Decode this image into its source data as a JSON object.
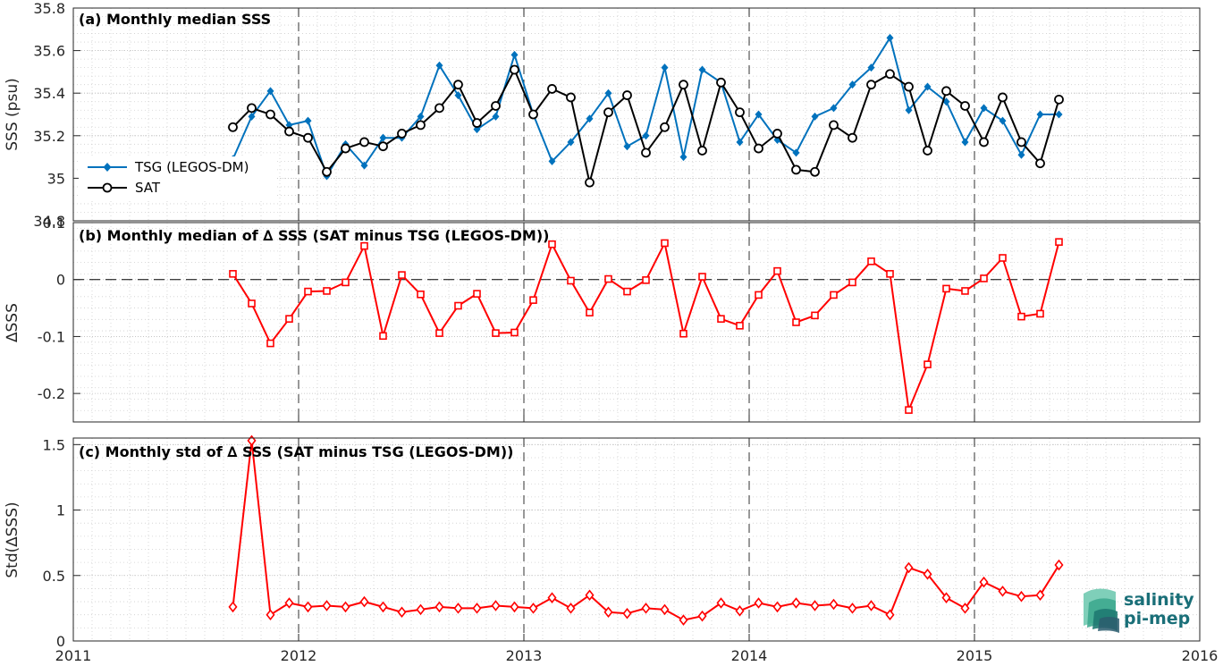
{
  "chart_data": [
    {
      "type": "line",
      "title": "(a) Monthly median SSS",
      "xlabel": "",
      "ylabel": "SSS (psu)",
      "xlim": [
        2011,
        2016
      ],
      "ylim": [
        34.8,
        35.8
      ],
      "yticks": [
        34.8,
        35,
        35.2,
        35.4,
        35.6,
        35.8
      ],
      "ytick_labels": [
        "34.8",
        "35",
        "35.2",
        "35.4",
        "35.6",
        "35.8"
      ],
      "grid": true,
      "legend_position": "lower-left",
      "x": [
        2011.7083,
        2011.7917,
        2011.875,
        2011.9583,
        2012.0417,
        2012.125,
        2012.2083,
        2012.2917,
        2012.375,
        2012.4583,
        2012.5417,
        2012.625,
        2012.7083,
        2012.7917,
        2012.875,
        2012.9583,
        2013.0417,
        2013.125,
        2013.2083,
        2013.2917,
        2013.375,
        2013.4583,
        2013.5417,
        2013.625,
        2013.7083,
        2013.7917,
        2013.875,
        2013.9583,
        2014.0417,
        2014.125,
        2014.2083,
        2014.2917,
        2014.375,
        2014.4583,
        2014.5417,
        2014.625,
        2014.7083,
        2014.7917,
        2014.875,
        2014.9583,
        2015.0417,
        2015.125,
        2015.2083,
        2015.2917,
        2015.375
      ],
      "series": [
        {
          "name": "TSG (LEGOS-DM)",
          "color": "#0072bd",
          "marker": "diamond-filled",
          "values": [
            35.09,
            35.29,
            35.41,
            35.25,
            35.27,
            35.01,
            35.16,
            35.06,
            35.19,
            35.19,
            35.29,
            35.53,
            35.39,
            35.23,
            35.29,
            35.58,
            35.3,
            35.08,
            35.17,
            35.28,
            35.4,
            35.15,
            35.2,
            35.52,
            35.1,
            35.51,
            35.45,
            35.17,
            35.3,
            35.18,
            35.12,
            35.29,
            35.33,
            35.44,
            35.52,
            35.66,
            35.32,
            35.43,
            35.36,
            35.17,
            35.33,
            35.27,
            35.11,
            35.3,
            35.3
          ]
        },
        {
          "name": "SAT",
          "color": "#000000",
          "marker": "circle-open",
          "values": [
            35.24,
            35.33,
            35.3,
            35.22,
            35.19,
            35.03,
            35.14,
            35.17,
            35.15,
            35.21,
            35.25,
            35.33,
            35.44,
            35.26,
            35.34,
            35.51,
            35.3,
            35.42,
            35.38,
            34.98,
            35.31,
            35.39,
            35.12,
            35.24,
            35.44,
            35.13,
            35.45,
            35.31,
            35.14,
            35.21,
            35.04,
            35.03,
            35.25,
            35.19,
            35.44,
            35.49,
            35.43,
            35.13,
            35.41,
            35.34,
            35.17,
            35.38,
            35.17,
            35.07,
            35.37
          ]
        }
      ]
    },
    {
      "type": "line",
      "title": "(b) Monthly median of ∆ SSS (SAT minus TSG (LEGOS-DM))",
      "xlabel": "",
      "ylabel": "∆SSS",
      "xlim": [
        2011,
        2016
      ],
      "ylim": [
        -0.25,
        0.1
      ],
      "yticks": [
        -0.2,
        -0.1,
        0,
        0.1
      ],
      "ytick_labels": [
        "-0.2",
        "-0.1",
        "0",
        "0.1"
      ],
      "grid": true,
      "zero_line": "dashed",
      "x": [
        2011.7083,
        2011.7917,
        2011.875,
        2011.9583,
        2012.0417,
        2012.125,
        2012.2083,
        2012.2917,
        2012.375,
        2012.4583,
        2012.5417,
        2012.625,
        2012.7083,
        2012.7917,
        2012.875,
        2012.9583,
        2013.0417,
        2013.125,
        2013.2083,
        2013.2917,
        2013.375,
        2013.4583,
        2013.5417,
        2013.625,
        2013.7083,
        2013.7917,
        2013.875,
        2013.9583,
        2014.0417,
        2014.125,
        2014.2083,
        2014.2917,
        2014.375,
        2014.4583,
        2014.5417,
        2014.625,
        2014.7083,
        2014.7917,
        2014.875,
        2014.9583,
        2015.0417,
        2015.125,
        2015.2083,
        2015.2917,
        2015.375
      ],
      "series": [
        {
          "color": "#ff0000",
          "marker": "square-open",
          "values": [
            0.01,
            -0.042,
            -0.112,
            -0.069,
            -0.021,
            -0.02,
            -0.005,
            0.059,
            -0.099,
            0.008,
            -0.026,
            -0.094,
            -0.046,
            -0.025,
            -0.094,
            -0.093,
            -0.036,
            0.062,
            -0.002,
            -0.058,
            0.001,
            -0.021,
            -0.001,
            0.064,
            -0.095,
            0.005,
            -0.069,
            -0.081,
            -0.027,
            0.015,
            -0.075,
            -0.063,
            -0.027,
            -0.005,
            0.032,
            0.01,
            -0.229,
            -0.149,
            -0.016,
            -0.02,
            0.002,
            0.038,
            -0.065,
            -0.06,
            0.066
          ]
        }
      ]
    },
    {
      "type": "line",
      "title": "(c) Monthly std of ∆ SSS (SAT minus TSG (LEGOS-DM))",
      "xlabel": "",
      "ylabel": "Std(∆SSS)",
      "xlim": [
        2011,
        2016
      ],
      "ylim": [
        0,
        1.55
      ],
      "yticks": [
        0,
        0.5,
        1,
        1.5
      ],
      "ytick_labels": [
        "0",
        "0.5",
        "1",
        "1.5"
      ],
      "xticks": [
        2011,
        2012,
        2013,
        2014,
        2015,
        2016
      ],
      "xtick_labels": [
        "2011",
        "2012",
        "2013",
        "2014",
        "2015",
        "2016"
      ],
      "grid": true,
      "x": [
        2011.7083,
        2011.7917,
        2011.875,
        2011.9583,
        2012.0417,
        2012.125,
        2012.2083,
        2012.2917,
        2012.375,
        2012.4583,
        2012.5417,
        2012.625,
        2012.7083,
        2012.7917,
        2012.875,
        2012.9583,
        2013.0417,
        2013.125,
        2013.2083,
        2013.2917,
        2013.375,
        2013.4583,
        2013.5417,
        2013.625,
        2013.7083,
        2013.7917,
        2013.875,
        2013.9583,
        2014.0417,
        2014.125,
        2014.2083,
        2014.2917,
        2014.375,
        2014.4583,
        2014.5417,
        2014.625,
        2014.7083,
        2014.7917,
        2014.875,
        2014.9583,
        2015.0417,
        2015.125,
        2015.2083,
        2015.2917,
        2015.375
      ],
      "series": [
        {
          "color": "#ff0000",
          "marker": "diamond-open",
          "values": [
            0.26,
            1.53,
            0.2,
            0.29,
            0.26,
            0.27,
            0.26,
            0.3,
            0.26,
            0.22,
            0.24,
            0.26,
            0.25,
            0.25,
            0.27,
            0.26,
            0.25,
            0.33,
            0.25,
            0.35,
            0.22,
            0.21,
            0.25,
            0.24,
            0.16,
            0.19,
            0.29,
            0.23,
            0.29,
            0.26,
            0.29,
            0.27,
            0.28,
            0.25,
            0.27,
            0.2,
            0.56,
            0.51,
            0.33,
            0.25,
            0.45,
            0.38,
            0.34,
            0.35,
            0.58
          ]
        }
      ]
    }
  ],
  "logo": {
    "line1": "salinity",
    "line2": "pi-mep"
  }
}
